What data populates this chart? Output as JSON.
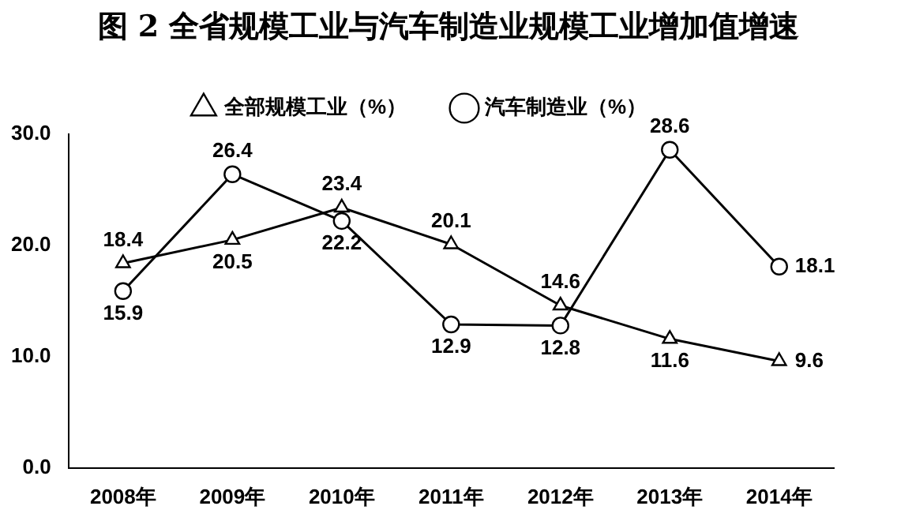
{
  "chart_data": {
    "type": "line",
    "title": "图 2 全省规模工业与汽车制造业规模工业增加值增速",
    "categories": [
      "2008年",
      "2009年",
      "2010年",
      "2011年",
      "2012年",
      "2013年",
      "2014年"
    ],
    "series": [
      {
        "name": "全部规模工业（%）",
        "color": "#000000",
        "marker": "triangle",
        "values": [
          18.4,
          20.5,
          23.4,
          20.1,
          14.6,
          11.6,
          9.6
        ]
      },
      {
        "name": "汽车制造业（%）",
        "color": "#000000",
        "marker": "circle",
        "values": [
          15.9,
          26.4,
          22.2,
          12.9,
          12.8,
          28.6,
          18.1
        ]
      }
    ],
    "ylim": [
      0,
      30
    ],
    "yticks": [
      {
        "value": 0,
        "label": "0.0"
      },
      {
        "value": 10,
        "label": "10.0"
      },
      {
        "value": 20,
        "label": "20.0"
      },
      {
        "value": 30,
        "label": "30.0"
      }
    ],
    "grid": false,
    "legend": "top",
    "data_labels": true,
    "line_style": "solid"
  }
}
